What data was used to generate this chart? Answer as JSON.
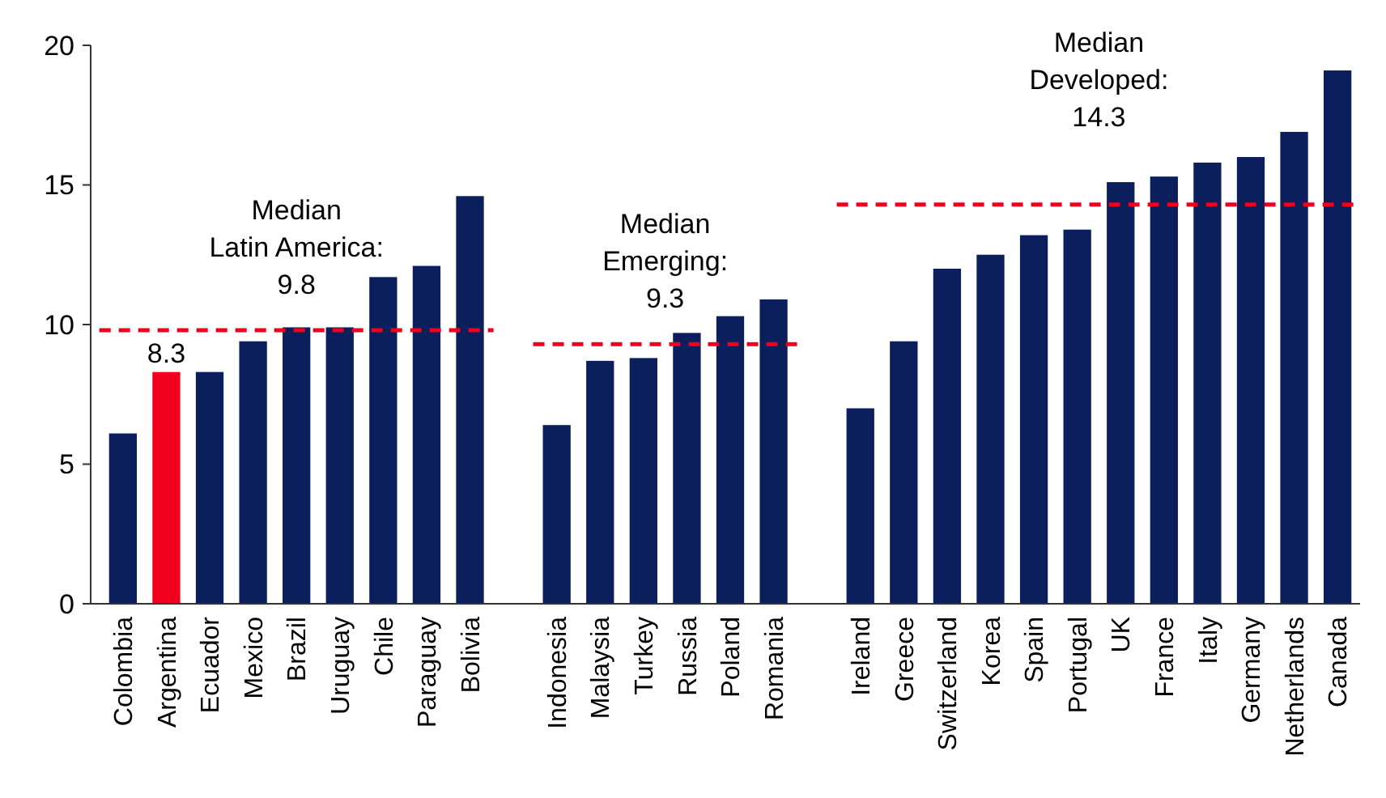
{
  "chart_data": {
    "type": "bar",
    "categories": [
      "Colombia",
      "Argentina",
      "Ecuador",
      "Mexico",
      "Brazil",
      "Uruguay",
      "Chile",
      "Paraguay",
      "Bolivia",
      null,
      "Indonesia",
      "Malaysia",
      "Turkey",
      "Russia",
      "Poland",
      "Romania",
      null,
      "Ireland",
      "Greece",
      "Switzerland",
      "Korea",
      "Spain",
      "Portugal",
      "UK",
      "France",
      "Italy",
      "Germany",
      "Netherlands",
      "Canada"
    ],
    "values": [
      6.1,
      8.3,
      8.3,
      9.4,
      9.9,
      9.9,
      11.7,
      12.1,
      14.6,
      null,
      6.4,
      8.7,
      8.8,
      9.7,
      10.3,
      10.9,
      null,
      7.0,
      9.4,
      12.0,
      12.5,
      13.2,
      13.4,
      15.1,
      15.3,
      15.8,
      16.0,
      16.9,
      19.1
    ],
    "colors": [
      "#0a1f5c",
      "#f0001c",
      "#0a1f5c",
      "#0a1f5c",
      "#0a1f5c",
      "#0a1f5c",
      "#0a1f5c",
      "#0a1f5c",
      "#0a1f5c",
      null,
      "#0a1f5c",
      "#0a1f5c",
      "#0a1f5c",
      "#0a1f5c",
      "#0a1f5c",
      "#0a1f5c",
      null,
      "#0a1f5c",
      "#0a1f5c",
      "#0a1f5c",
      "#0a1f5c",
      "#0a1f5c",
      "#0a1f5c",
      "#0a1f5c",
      "#0a1f5c",
      "#0a1f5c",
      "#0a1f5c",
      "#0a1f5c",
      "#0a1f5c"
    ],
    "value_labels": [
      null,
      "8.3",
      null,
      null,
      null,
      null,
      null,
      null,
      null,
      null,
      null,
      null,
      null,
      null,
      null,
      null,
      null,
      null,
      null,
      null,
      null,
      null,
      null,
      null,
      null,
      null,
      null,
      null,
      null
    ],
    "ylim": [
      0,
      20
    ],
    "yticks": [
      0,
      5,
      10,
      15,
      20
    ],
    "grid": false,
    "ref_lines": [
      {
        "axis": "y",
        "value": 9.8,
        "label": "Median\nLatin America:\n9.8",
        "color": "#f0001c",
        "line_style": "dashed"
      },
      {
        "axis": "y",
        "value": 9.3,
        "label": "Median\nEmerging:\n9.3",
        "color": "#f0001c",
        "line_style": "dashed"
      },
      {
        "axis": "y",
        "value": 14.3,
        "label": "Median\nDeveloped:\n14.3",
        "color": "#f0001c",
        "line_style": "dashed"
      }
    ]
  }
}
